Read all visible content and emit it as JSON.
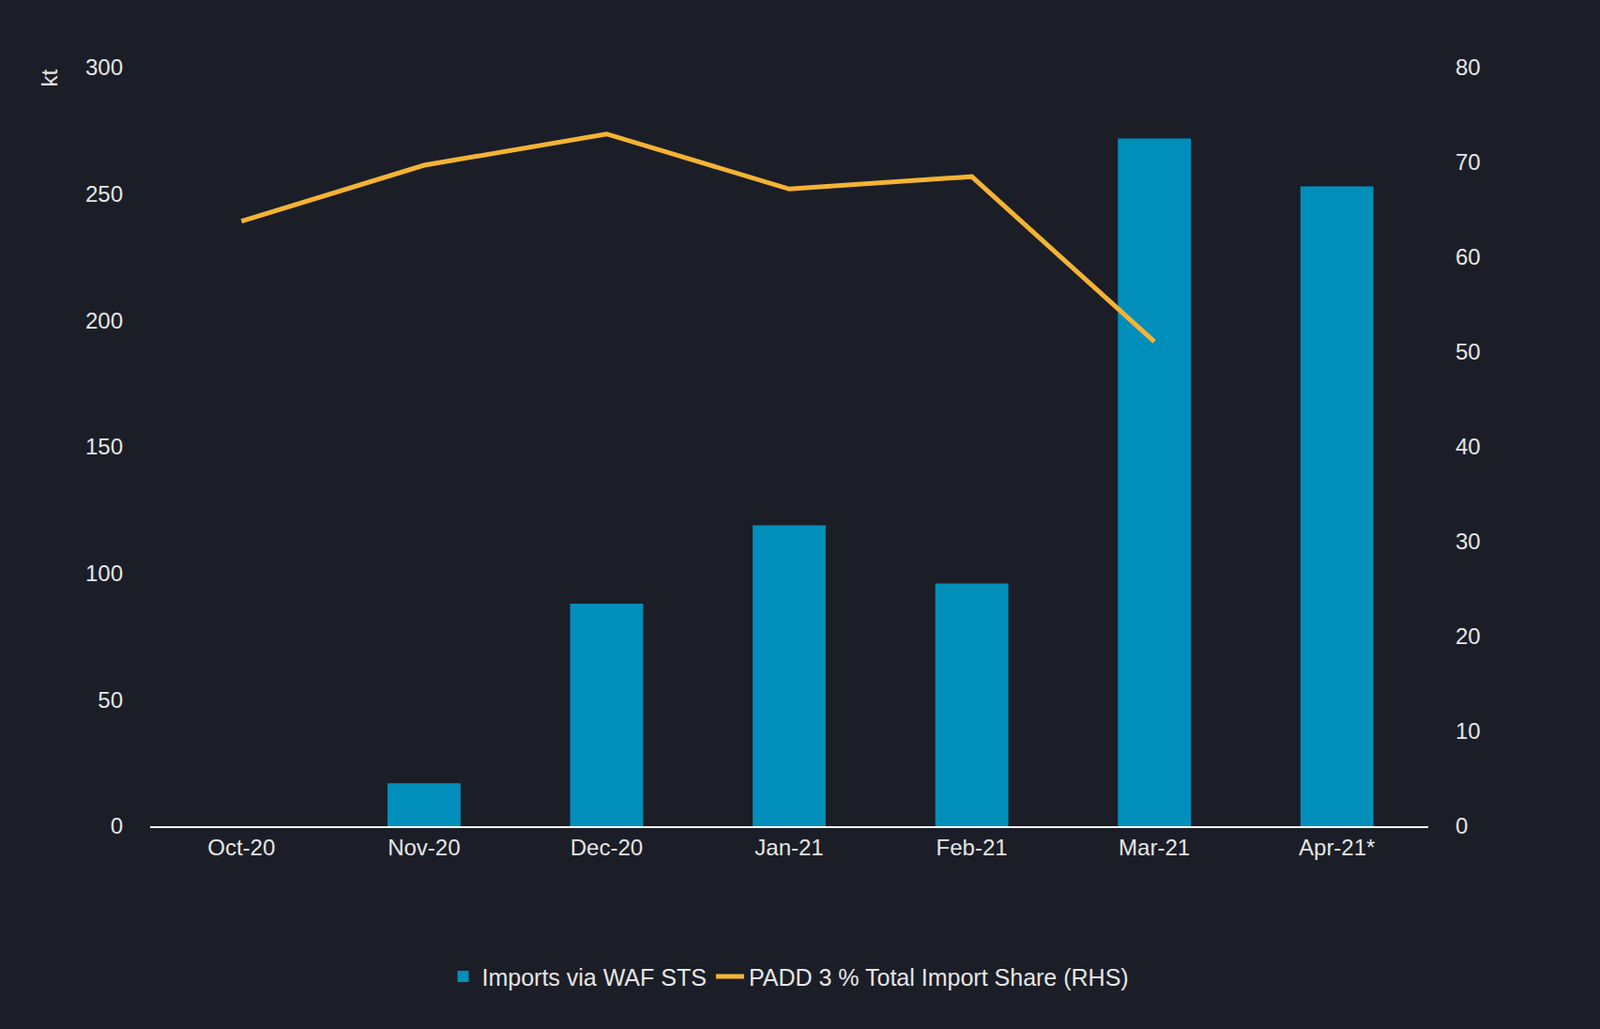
{
  "chart_data": {
    "type": "bar",
    "y_label": "kt",
    "categories": [
      "Oct-20",
      "Nov-20",
      "Dec-20",
      "Jan-21",
      "Feb-21",
      "Mar-21",
      "Apr-21*"
    ],
    "series": [
      {
        "name": "Imports via WAF STS",
        "type": "bar",
        "color": "#008fbb",
        "axis": "y",
        "values": [
          0,
          17,
          88,
          119,
          96,
          272,
          253
        ]
      },
      {
        "name": "PADD 3 % Total Import Share (RHS)",
        "type": "line",
        "color": "#f5b335",
        "axis": "y2",
        "values": [
          63.8,
          69.7,
          73,
          67.2,
          68.5,
          51.1,
          null
        ]
      }
    ],
    "ylim": [
      0,
      300
    ],
    "yticks": [
      0,
      50,
      100,
      150,
      200,
      250,
      300
    ],
    "y2lim": [
      0,
      80
    ],
    "y2ticks": [
      0,
      10,
      20,
      30,
      40,
      50,
      60,
      70,
      80
    ],
    "grid": false,
    "legend": "bottom"
  }
}
